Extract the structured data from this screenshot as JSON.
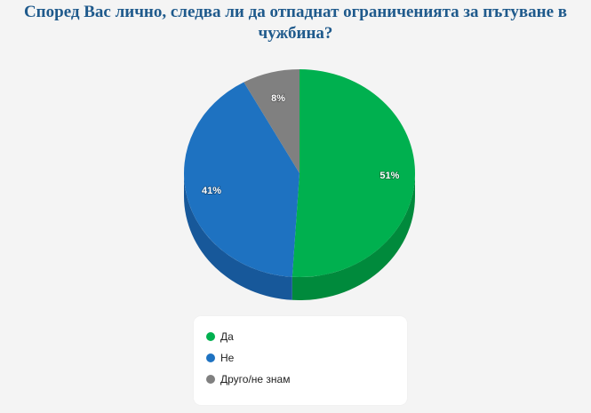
{
  "chart_data": {
    "type": "pie",
    "title": "Според Вас лично, следва ли да отпаднат ограниченията за пътуване в чужбина?",
    "categories": [
      "Да",
      "Не",
      "Друго/не знам"
    ],
    "values": [
      51,
      41,
      8
    ],
    "value_labels": [
      "51%",
      "41%",
      "8%"
    ],
    "colors": [
      "#00b04f",
      "#1e72c1",
      "#808080"
    ],
    "side_colors": [
      "#008a3c",
      "#17589a",
      "#5f5f5f"
    ],
    "legend_position": "bottom",
    "style": "3d"
  }
}
